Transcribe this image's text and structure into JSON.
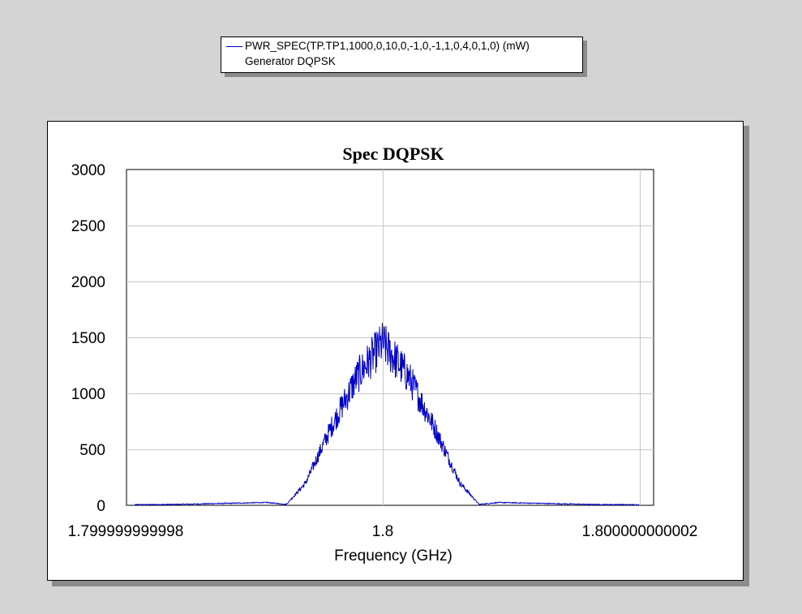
{
  "legend": {
    "entry": "PWR_SPEC(TP.TP1,1000,0,10,0,-1,0,-1,1,0,4,0,1,0) (mW)",
    "source": "Generator DQPSK",
    "color": "#0000cc"
  },
  "chart_data": {
    "type": "line",
    "title": "Spec DQPSK",
    "xlabel": "Frequency (GHz)",
    "ylabel": "",
    "ylim": [
      0,
      3000
    ],
    "yticks": [
      0,
      500,
      1000,
      1500,
      2000,
      2500,
      3000
    ],
    "ytick_labels": [
      "0",
      "500",
      "1000",
      "1500",
      "2000",
      "2500",
      "3000"
    ],
    "xtick_labels": [
      "1.799999999998",
      "1.8",
      "1.800000000002"
    ],
    "grid": true,
    "legend_position": "top",
    "series": [
      {
        "color": "#0000cc",
        "shape": "DQPSK power spectrum: main lobe centered at 1.8 GHz, peak about 1450 mW, side lobes near 20 mW",
        "x_relative_to_center_GHz": [
          -2e-12,
          -1.6e-12,
          -1.2e-12,
          -9e-13,
          -7.5e-13,
          -6e-13,
          -4e-13,
          -2e-13,
          0,
          2e-13,
          4e-13,
          6e-13,
          7.5e-13,
          9e-13,
          1.2e-12,
          1.6e-12,
          2e-12
        ],
        "values": [
          5,
          8,
          18,
          25,
          8,
          200,
          700,
          1150,
          1450,
          1150,
          700,
          200,
          8,
          25,
          18,
          8,
          5
        ]
      }
    ]
  }
}
